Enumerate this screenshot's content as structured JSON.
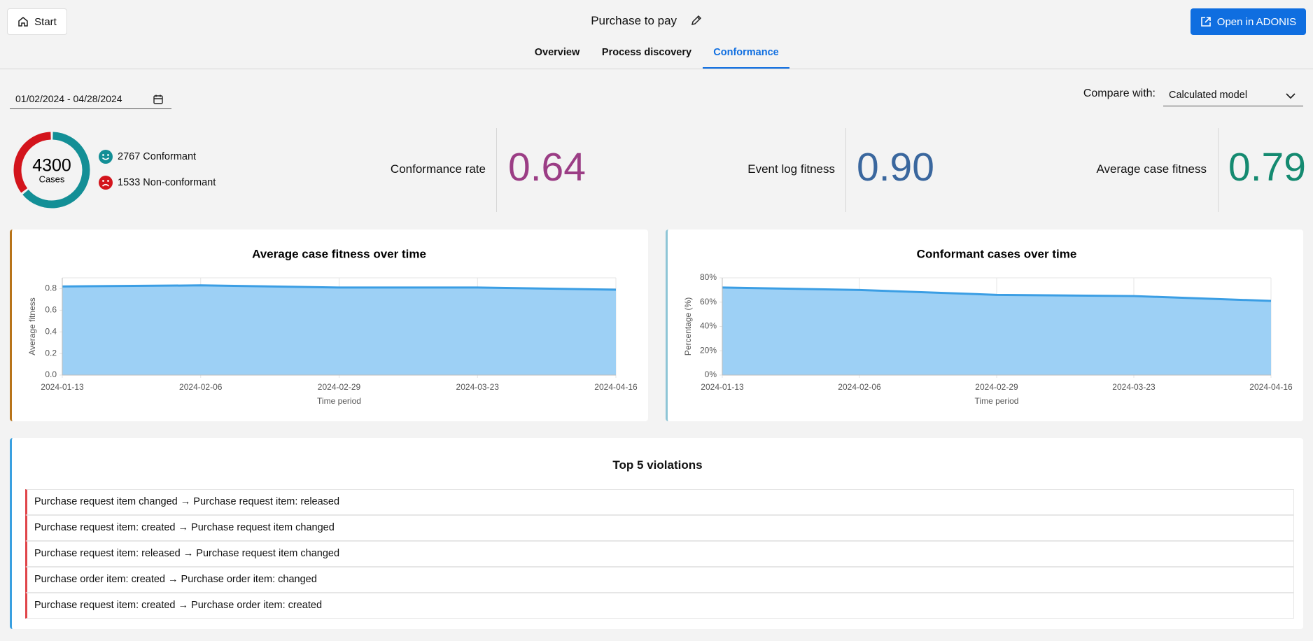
{
  "header": {
    "start_button": "Start",
    "title": "Purchase to pay",
    "open_button": "Open in ADONIS"
  },
  "tabs": [
    "Overview",
    "Process discovery",
    "Conformance"
  ],
  "active_tab": 2,
  "filters": {
    "date_range": "01/02/2024 - 04/28/2024",
    "compare_label": "Compare with:",
    "compare_value": "Calculated model"
  },
  "summary": {
    "total": 4300,
    "total_label": "Cases",
    "conformant": {
      "value": 2767,
      "label": "Conformant",
      "color": "#138f96"
    },
    "non_conformant": {
      "value": 1533,
      "label": "Non-conformant",
      "color": "#d3141c"
    }
  },
  "metrics": [
    {
      "label": "Conformance rate",
      "value": "0.64",
      "color": "#9b3d85"
    },
    {
      "label": "Event log fitness",
      "value": "0.90",
      "color": "#3a679e"
    },
    {
      "label": "Average case fitness",
      "value": "0.79",
      "color": "#148a70"
    }
  ],
  "chart_data": [
    {
      "type": "area",
      "title": "Average case fitness over time",
      "x_label": "Time period",
      "y_label": "Average fitness",
      "categories": [
        "2024-01-13",
        "2024-02-06",
        "2024-02-29",
        "2024-03-23",
        "2024-04-16"
      ],
      "values": [
        0.82,
        0.83,
        0.81,
        0.81,
        0.79
      ],
      "color": "#3b9ee4",
      "fill": "#9dd0f5",
      "ylim": [
        0,
        0.9
      ],
      "yticks": [
        {
          "value": 0,
          "label": "0.0"
        },
        0.2,
        0.4,
        0.6,
        0.8
      ],
      "grid": true
    },
    {
      "type": "area",
      "title": "Conformant cases over time",
      "x_label": "Time period",
      "y_label": "Percentage (%)",
      "categories": [
        "2024-01-13",
        "2024-02-06",
        "2024-02-29",
        "2024-03-23",
        "2024-04-16"
      ],
      "values": [
        72,
        70,
        66,
        65,
        61
      ],
      "color": "#3b9ee4",
      "fill": "#9dd0f5",
      "ylim": [
        0,
        80
      ],
      "yticks": [
        {
          "value": 0,
          "label": "0%"
        },
        {
          "value": 20,
          "label": "20%"
        },
        {
          "value": 40,
          "label": "40%"
        },
        {
          "value": 60,
          "label": "60%"
        },
        {
          "value": 80,
          "label": "80%"
        }
      ],
      "grid": true
    }
  ],
  "violations": {
    "title": "Top 5 violations",
    "items": [
      "Purchase request item changed → Purchase request item: released",
      "Purchase request item: created → Purchase request item changed",
      "Purchase request item: released → Purchase request item changed",
      "Purchase order item: created → Purchase order item: changed",
      "Purchase request item: created → Purchase order item: created"
    ]
  }
}
